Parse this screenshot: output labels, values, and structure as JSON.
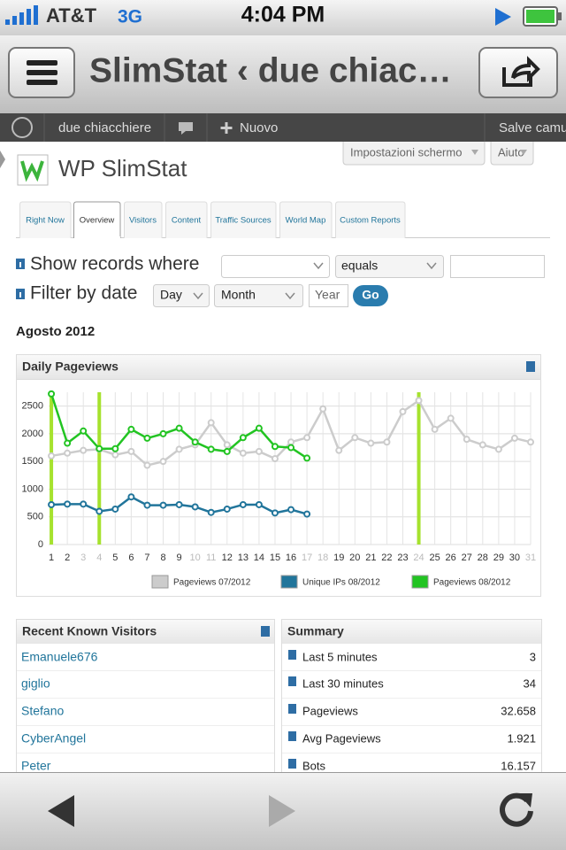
{
  "status_bar": {
    "carrier": "AT&T",
    "network": "3G",
    "time": "4:04 PM"
  },
  "browser": {
    "title": "SlimStat ‹ due chiac…"
  },
  "admin_bar": {
    "site": "due chiacchiere",
    "new": "Nuovo",
    "greeting": "Salve camu"
  },
  "screen_options": "Impostazioni schermo",
  "help": "Aiuto",
  "page_title": "WP SlimStat",
  "tabs": [
    "Right Now",
    "Overview",
    "Visitors",
    "Content",
    "Traffic Sources",
    "World Map",
    "Custom Reports"
  ],
  "filters": {
    "show_label": "Show records where",
    "operator": "equals",
    "date_label": "Filter by date",
    "day": "Day",
    "month": "Month",
    "year": "Year",
    "go": "Go"
  },
  "period": "Agosto 2012",
  "chart_data": {
    "type": "line",
    "title": "Daily Pageviews",
    "x": [
      1,
      2,
      3,
      4,
      5,
      6,
      7,
      8,
      9,
      10,
      11,
      12,
      13,
      14,
      15,
      16,
      17,
      18,
      19,
      20,
      21,
      22,
      23,
      24,
      25,
      26,
      27,
      28,
      29,
      30,
      31
    ],
    "xlim": [
      0.83,
      31
    ],
    "ylim": [
      0,
      2750
    ],
    "yticks": [
      0,
      500,
      1000,
      1500,
      2000,
      2500
    ],
    "grid": true,
    "highlight_x": [
      1,
      4,
      24
    ],
    "highlight_color": "#a6e22e",
    "dim_x": [
      3,
      4,
      10,
      11,
      17,
      18,
      24,
      31
    ],
    "series": [
      {
        "name": "Pageviews 07/2012",
        "color": "#cccccc",
        "values": [
          1600,
          1650,
          1700,
          1720,
          1620,
          1680,
          1430,
          1500,
          1720,
          1800,
          2200,
          1800,
          1650,
          1680,
          1550,
          1850,
          1930,
          2450,
          1700,
          1930,
          1830,
          1850,
          2400,
          2600,
          2080,
          2280,
          1900,
          1800,
          1720,
          1920,
          1850
        ]
      },
      {
        "name": "Unique IPs 08/2012",
        "color": "#21759b",
        "values": [
          720,
          730,
          730,
          600,
          640,
          860,
          710,
          710,
          720,
          680,
          580,
          640,
          720,
          720,
          570,
          630,
          550,
          null,
          null,
          null,
          null,
          null,
          null,
          null,
          null,
          null,
          null,
          null,
          null,
          null,
          null
        ]
      },
      {
        "name": "Pageviews 08/2012",
        "color": "#22c422",
        "values": [
          2720,
          1830,
          2050,
          1730,
          1730,
          2080,
          1920,
          2000,
          2100,
          1850,
          1720,
          1680,
          1930,
          2100,
          1770,
          1750,
          1560,
          null,
          null,
          null,
          null,
          null,
          null,
          null,
          null,
          null,
          null,
          null,
          null,
          null,
          null
        ]
      }
    ]
  },
  "visitors": {
    "title": "Recent Known Visitors",
    "names": [
      "Emanuele676",
      "giglio",
      "Stefano",
      "CyberAngel",
      "Peter"
    ]
  },
  "summary": {
    "title": "Summary",
    "rows": [
      {
        "label": "Last 5 minutes",
        "value": "3"
      },
      {
        "label": "Last 30 minutes",
        "value": "34"
      },
      {
        "label": "Pageviews",
        "value": "32.658"
      },
      {
        "label": "Avg Pageviews",
        "value": "1.921"
      },
      {
        "label": "Bots",
        "value": "16.157"
      }
    ]
  }
}
